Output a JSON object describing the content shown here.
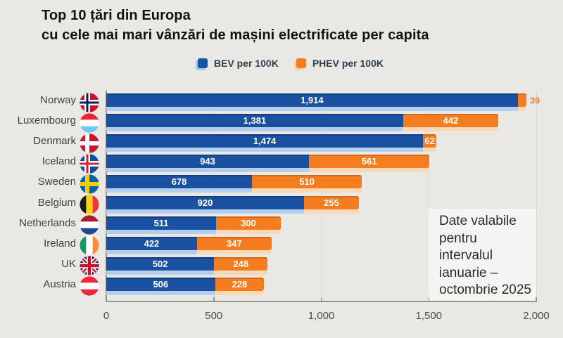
{
  "title": {
    "line1": "Top 10 țări din Europa",
    "line2": "cu cele mai mari vânzări de mașini electrificate per capita"
  },
  "legend": {
    "bev": {
      "label": "BEV per 100K",
      "color": "#1a52a1"
    },
    "phev": {
      "label": "PHEV per 100K",
      "color": "#f47d20"
    }
  },
  "annotation": {
    "lines": [
      "Date valabile",
      "pentru",
      "intervalul",
      "ianuarie –",
      "octombrie 2025"
    ]
  },
  "x_axis": {
    "tick_labels": [
      "0",
      "500",
      "1,000",
      "1,500",
      "2,000"
    ],
    "tick_values": [
      0,
      500,
      1000,
      1500,
      2000
    ]
  },
  "chart_data": {
    "type": "bar",
    "orientation": "horizontal",
    "stacked": true,
    "title": "Top 10 țări din Europa cu cele mai mari vânzări de mașini electrificate per capita",
    "xlim": [
      0,
      2000
    ],
    "x_ticks": [
      0,
      500,
      1000,
      1500,
      2000
    ],
    "grid": true,
    "legend_position": "top",
    "categories": [
      "Norway",
      "Luxembourg",
      "Denmark",
      "Iceland",
      "Sweden",
      "Belgium",
      "Netherlands",
      "Ireland",
      "UK",
      "Austria"
    ],
    "series": [
      {
        "name": "BEV per 100K",
        "color": "#1a52a1",
        "values": [
          1914,
          1381,
          1474,
          943,
          678,
          920,
          511,
          422,
          502,
          506
        ]
      },
      {
        "name": "PHEV per 100K",
        "color": "#f47d20",
        "values": [
          39,
          442,
          62,
          561,
          510,
          255,
          300,
          347,
          248,
          228
        ]
      }
    ],
    "countries": [
      {
        "label": "Norway",
        "flag": "norway",
        "bev": 1914,
        "phev": 39,
        "bev_label": "1,914",
        "phev_label": "39",
        "phev_label_outside": true
      },
      {
        "label": "Luxembourg",
        "flag": "luxembourg",
        "bev": 1381,
        "phev": 442,
        "bev_label": "1,381",
        "phev_label": "442"
      },
      {
        "label": "Denmark",
        "flag": "denmark",
        "bev": 1474,
        "phev": 62,
        "bev_label": "1,474",
        "phev_label": "62"
      },
      {
        "label": "Iceland",
        "flag": "iceland",
        "bev": 943,
        "phev": 561,
        "bev_label": "943",
        "phev_label": "561"
      },
      {
        "label": "Sweden",
        "flag": "sweden",
        "bev": 678,
        "phev": 510,
        "bev_label": "678",
        "phev_label": "510"
      },
      {
        "label": "Belgium",
        "flag": "belgium",
        "bev": 920,
        "phev": 255,
        "bev_label": "920",
        "phev_label": "255"
      },
      {
        "label": "Netherlands",
        "flag": "netherlands",
        "bev": 511,
        "phev": 300,
        "bev_label": "511",
        "phev_label": "300"
      },
      {
        "label": "Ireland",
        "flag": "ireland",
        "bev": 422,
        "phev": 347,
        "bev_label": "422",
        "phev_label": "347"
      },
      {
        "label": "UK",
        "flag": "uk",
        "bev": 502,
        "phev": 248,
        "bev_label": "502",
        "phev_label": "248"
      },
      {
        "label": "Austria",
        "flag": "austria",
        "bev": 506,
        "phev": 228,
        "bev_label": "506",
        "phev_label": "228"
      }
    ]
  },
  "colors": {
    "background": "#e9e8e5",
    "bev": "#1a52a1",
    "bev_light": "#9ec6ea",
    "bev_strip": "#b3cfed",
    "phev": "#f47d20",
    "phev_light": "#f9cfa4",
    "phev_strip": "#fad8b6",
    "annotation_bg": "#f4f4f2",
    "axis": "#96948f",
    "gridline": "#d8d7d4"
  }
}
